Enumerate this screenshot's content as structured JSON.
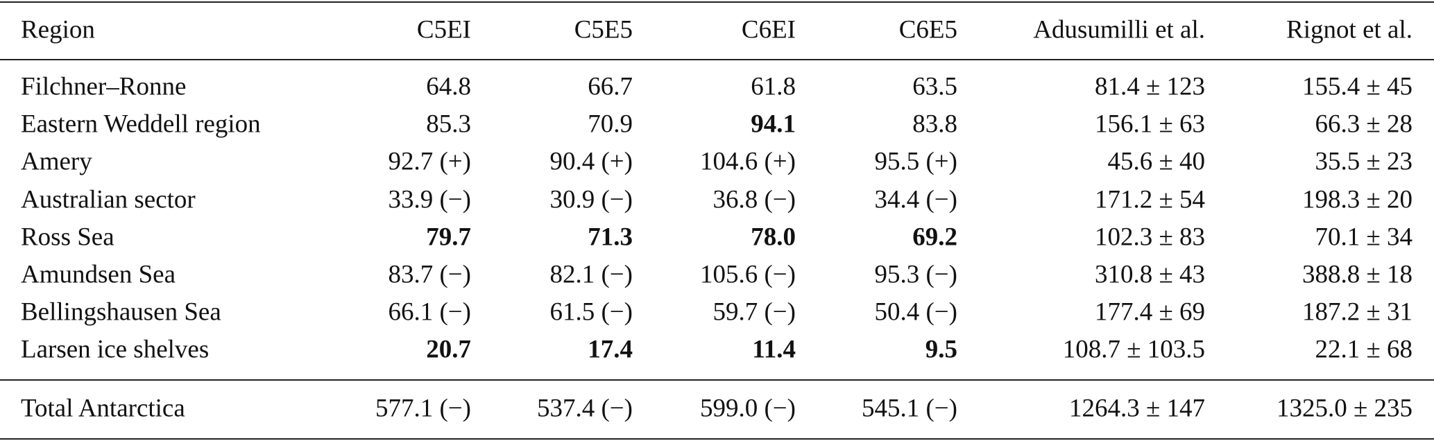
{
  "table": {
    "header": [
      "Region",
      "C5EI",
      "C5E5",
      "C6EI",
      "C6E5",
      "Adusumilli et al.",
      "Rignot et al."
    ],
    "rows": [
      [
        "Filchner–Ronne",
        "64.8",
        "66.7",
        "61.8",
        "63.5",
        "81.4 ± 123",
        "155.4 ± 45"
      ],
      [
        "Eastern Weddell region",
        "85.3",
        "70.9",
        {
          "text": "94.1",
          "bold": true
        },
        "83.8",
        "156.1 ± 63",
        "66.3 ± 28"
      ],
      [
        "Amery",
        "92.7 (+)",
        "90.4 (+)",
        "104.6 (+)",
        "95.5 (+)",
        "45.6 ± 40",
        "35.5 ± 23"
      ],
      [
        "Australian sector",
        "33.9 (−)",
        "30.9 (−)",
        "36.8 (−)",
        "34.4 (−)",
        "171.2 ± 54",
        "198.3 ± 20"
      ],
      [
        "Ross Sea",
        {
          "text": "79.7",
          "bold": true
        },
        {
          "text": "71.3",
          "bold": true
        },
        {
          "text": "78.0",
          "bold": true
        },
        {
          "text": "69.2",
          "bold": true
        },
        "102.3 ± 83",
        "70.1 ± 34"
      ],
      [
        "Amundsen Sea",
        "83.7 (−)",
        "82.1 (−)",
        "105.6 (−)",
        "95.3 (−)",
        "310.8 ± 43",
        "388.8 ± 18"
      ],
      [
        "Bellingshausen Sea",
        "66.1 (−)",
        "61.5 (−)",
        "59.7 (−)",
        "50.4 (−)",
        "177.4 ± 69",
        "187.2 ± 31"
      ],
      [
        "Larsen ice shelves",
        {
          "text": "20.7",
          "bold": true
        },
        {
          "text": "17.4",
          "bold": true
        },
        {
          "text": "11.4",
          "bold": true
        },
        {
          "text": "9.5",
          "bold": true
        },
        "108.7 ± 103.5",
        "22.1 ± 68"
      ]
    ],
    "total": [
      "Total Antarctica",
      "577.1 (−)",
      "537.4 (−)",
      "599.0 (−)",
      "545.1 (−)",
      "1264.3 ± 147",
      "1325.0 ± 235"
    ]
  }
}
